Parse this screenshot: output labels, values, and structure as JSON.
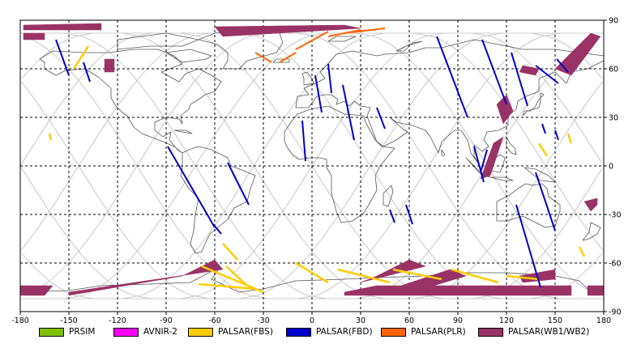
{
  "x_ticks": [
    "-180",
    "-150",
    "-120",
    "-90",
    "-60",
    "-30",
    "0",
    "30",
    "60",
    "90",
    "120",
    "150",
    "180"
  ],
  "y_ticks": [
    "90",
    "60",
    "30",
    "0",
    "-30",
    "-60",
    "-90"
  ],
  "colors": {
    "land": "#555555",
    "orbit": "#bdbdbd",
    "grid": "#000000",
    "prism": "#80c000",
    "avnir2": "#ff00ff",
    "fbs": "#ffcc00",
    "fbd": "#0000c8",
    "plr": "#ff6600",
    "wb": "#993366"
  },
  "legend": [
    {
      "label": "PRSIM",
      "color": "#80c000"
    },
    {
      "label": "AVNIR-2",
      "color": "#ff00ff"
    },
    {
      "label": "PALSAR(FBS)",
      "color": "#ffcc00"
    },
    {
      "label": "PALSAR(FBD)",
      "color": "#0000c8"
    },
    {
      "label": "PALSAR(PLR)",
      "color": "#ff6600"
    },
    {
      "label": "PALSAR(WB1/WB2)",
      "color": "#993366"
    }
  ],
  "chart_data": {
    "type": "scatter",
    "xlim": [
      -180,
      180
    ],
    "ylim": [
      -90,
      90
    ],
    "x_ticks": [
      -180,
      -150,
      -120,
      -90,
      -60,
      -30,
      0,
      30,
      60,
      90,
      120,
      150,
      180
    ],
    "y_ticks": [
      90,
      60,
      30,
      0,
      -30,
      -60,
      -90
    ],
    "grid": true,
    "legend_placement": "bottom",
    "fbd_tracks": [
      [
        [
          -158,
          78
        ],
        [
          -150,
          56
        ]
      ],
      [
        [
          -141,
          64
        ],
        [
          -137,
          52
        ]
      ],
      [
        [
          -89,
          12
        ],
        [
          -60,
          -38
        ]
      ],
      [
        [
          -52,
          2
        ],
        [
          -39,
          -24
        ]
      ],
      [
        [
          -61,
          -36
        ],
        [
          -56,
          -42
        ]
      ],
      [
        [
          -6,
          28
        ],
        [
          -4,
          3
        ]
      ],
      [
        [
          2,
          56
        ],
        [
          6,
          33
        ]
      ],
      [
        [
          10,
          63
        ],
        [
          12,
          45
        ]
      ],
      [
        [
          19,
          50
        ],
        [
          26,
          16
        ]
      ],
      [
        [
          40,
          36
        ],
        [
          45,
          23
        ]
      ],
      [
        [
          48,
          -27
        ],
        [
          51,
          -35
        ]
      ],
      [
        [
          58,
          -24
        ],
        [
          62,
          -36
        ]
      ],
      [
        [
          77,
          80
        ],
        [
          96,
          30
        ]
      ],
      [
        [
          105,
          78
        ],
        [
          120,
          38
        ]
      ],
      [
        [
          123,
          70
        ],
        [
          133,
          37
        ]
      ],
      [
        [
          138,
          62
        ],
        [
          152,
          51
        ]
      ],
      [
        [
          151,
          66
        ],
        [
          158,
          58
        ]
      ],
      [
        [
          100,
          12
        ],
        [
          106,
          -10
        ]
      ],
      [
        [
          126,
          -24
        ],
        [
          141,
          -75
        ]
      ],
      [
        [
          108,
          10
        ],
        [
          104,
          -4
        ]
      ],
      [
        [
          138,
          -4
        ],
        [
          150,
          -40
        ]
      ],
      [
        [
          142,
          26
        ],
        [
          144,
          20
        ]
      ],
      [
        [
          150,
          22
        ],
        [
          152,
          16
        ]
      ]
    ],
    "fbs_tracks": [
      [
        [
          -138,
          74
        ],
        [
          -147,
          60
        ]
      ],
      [
        [
          -162,
          20
        ],
        [
          -161,
          16
        ]
      ],
      [
        [
          -55,
          -48
        ],
        [
          -46,
          -58
        ]
      ],
      [
        [
          -53,
          -62
        ],
        [
          -40,
          -74
        ]
      ],
      [
        [
          -68,
          -62
        ],
        [
          -30,
          -78
        ]
      ],
      [
        [
          -10,
          -60
        ],
        [
          10,
          -72
        ]
      ],
      [
        [
          16,
          -64
        ],
        [
          48,
          -72
        ]
      ],
      [
        [
          50,
          -64
        ],
        [
          80,
          -70
        ]
      ],
      [
        [
          86,
          -64
        ],
        [
          115,
          -72
        ]
      ],
      [
        [
          140,
          14
        ],
        [
          145,
          6
        ]
      ],
      [
        [
          158,
          20
        ],
        [
          160,
          14
        ]
      ],
      [
        [
          165,
          -50
        ],
        [
          168,
          -56
        ]
      ],
      [
        [
          -70,
          -73
        ],
        [
          -35,
          -76
        ]
      ],
      [
        [
          120,
          -68
        ],
        [
          140,
          -70
        ]
      ]
    ],
    "plr_tracks": [
      [
        [
          -10,
          72
        ],
        [
          10,
          83
        ]
      ],
      [
        [
          10,
          80
        ],
        [
          30,
          84
        ]
      ],
      [
        [
          -35,
          70
        ],
        [
          -25,
          64
        ]
      ],
      [
        [
          -20,
          64
        ],
        [
          -10,
          70
        ]
      ],
      [
        [
          20,
          82
        ],
        [
          45,
          85
        ]
      ]
    ],
    "wb_swaths": [
      [
        [
          -178,
          87
        ],
        [
          -130,
          88
        ],
        [
          -130,
          84
        ],
        [
          -178,
          84
        ]
      ],
      [
        [
          -178,
          82
        ],
        [
          -165,
          82
        ],
        [
          -165,
          78
        ],
        [
          -178,
          78
        ]
      ],
      [
        [
          -128,
          66
        ],
        [
          -122,
          66
        ],
        [
          -122,
          58
        ],
        [
          -128,
          58
        ]
      ],
      [
        [
          -60,
          86
        ],
        [
          20,
          87
        ],
        [
          30,
          85
        ],
        [
          -55,
          80
        ]
      ],
      [
        [
          -80,
          -68
        ],
        [
          -60,
          -58
        ],
        [
          -55,
          -64
        ],
        [
          -150,
          -78
        ],
        [
          -150,
          -80
        ]
      ],
      [
        [
          -180,
          -74
        ],
        [
          -160,
          -74
        ],
        [
          -165,
          -80
        ],
        [
          -180,
          -80
        ]
      ],
      [
        [
          40,
          -68
        ],
        [
          60,
          -58
        ],
        [
          70,
          -62
        ],
        [
          30,
          -72
        ]
      ],
      [
        [
          55,
          -74
        ],
        [
          85,
          -64
        ],
        [
          95,
          -68
        ],
        [
          55,
          -80
        ]
      ],
      [
        [
          20,
          -78
        ],
        [
          40,
          -74
        ],
        [
          160,
          -74
        ],
        [
          160,
          -80
        ],
        [
          20,
          -80
        ]
      ],
      [
        [
          118,
          26
        ],
        [
          124,
          34
        ],
        [
          120,
          44
        ],
        [
          114,
          38
        ]
      ],
      [
        [
          112,
          14
        ],
        [
          118,
          18
        ],
        [
          110,
          -6
        ],
        [
          104,
          -8
        ]
      ],
      [
        [
          130,
          62
        ],
        [
          140,
          60
        ],
        [
          138,
          56
        ],
        [
          128,
          58
        ]
      ],
      [
        [
          150,
          60
        ],
        [
          172,
          82
        ],
        [
          178,
          80
        ],
        [
          160,
          56
        ]
      ],
      [
        [
          128,
          -68
        ],
        [
          150,
          -64
        ],
        [
          150,
          -70
        ],
        [
          130,
          -72
        ]
      ],
      [
        [
          168,
          -22
        ],
        [
          176,
          -20
        ],
        [
          176,
          -24
        ],
        [
          172,
          -28
        ]
      ],
      [
        [
          170,
          -74
        ],
        [
          180,
          -74
        ],
        [
          180,
          -80
        ],
        [
          170,
          -80
        ]
      ]
    ]
  }
}
